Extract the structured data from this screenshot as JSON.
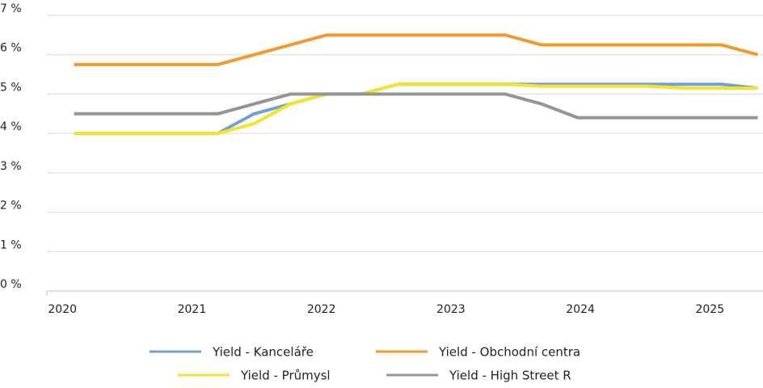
{
  "chart_data": {
    "type": "line",
    "x": [
      2020.09,
      2020.37,
      2020.65,
      2020.93,
      2021.2,
      2021.48,
      2021.76,
      2022.04,
      2022.31,
      2022.59,
      2022.87,
      2023.15,
      2023.42,
      2023.7,
      2023.98,
      2024.26,
      2024.53,
      2024.81,
      2025.09,
      2025.37
    ],
    "series": [
      {
        "name": "Yield - Kanceláře",
        "color": "#6fa3d8",
        "values": [
          4,
          4,
          4,
          4,
          4,
          4.5,
          4.75,
          5,
          5,
          5.25,
          5.25,
          5.25,
          5.25,
          5.25,
          5.25,
          5.25,
          5.25,
          5.25,
          5.25,
          5.15
        ]
      },
      {
        "name": "Yield - Obchodní centra",
        "color": "#f39a2e",
        "values": [
          5.75,
          5.75,
          5.75,
          5.75,
          5.75,
          6,
          6.25,
          6.5,
          6.5,
          6.5,
          6.5,
          6.5,
          6.5,
          6.25,
          6.25,
          6.25,
          6.25,
          6.25,
          6.25,
          6
        ]
      },
      {
        "name": "Yield - Průmysl",
        "color": "#f7e32a",
        "values": [
          4,
          4,
          4,
          4,
          4,
          4.25,
          4.75,
          5,
          5,
          5.25,
          5.25,
          5.25,
          5.25,
          5.2,
          5.2,
          5.2,
          5.2,
          5.15,
          5.15,
          5.15
        ]
      },
      {
        "name": "Yield - High Street R",
        "color": "#959595",
        "values": [
          4.5,
          4.5,
          4.5,
          4.5,
          4.5,
          4.75,
          5,
          5,
          5,
          5,
          5,
          5,
          5,
          4.75,
          4.4,
          4.4,
          4.4,
          4.4,
          4.4,
          4.4
        ]
      }
    ],
    "xlim": [
      2019.88,
      2025.41
    ],
    "xticks": [
      2020,
      2021,
      2022,
      2023,
      2024,
      2025
    ],
    "ylim": [
      0,
      7
    ],
    "yticks": [
      {
        "value": 0,
        "label": "0 %"
      },
      {
        "value": 1,
        "label": "1 %"
      },
      {
        "value": 2,
        "label": "2 %"
      },
      {
        "value": 3,
        "label": "3 %"
      },
      {
        "value": 4,
        "label": "4 %"
      },
      {
        "value": 5,
        "label": "5 %"
      },
      {
        "value": 6,
        "label": "6 %"
      },
      {
        "value": 7,
        "label": "7 %"
      }
    ],
    "grid": true
  }
}
